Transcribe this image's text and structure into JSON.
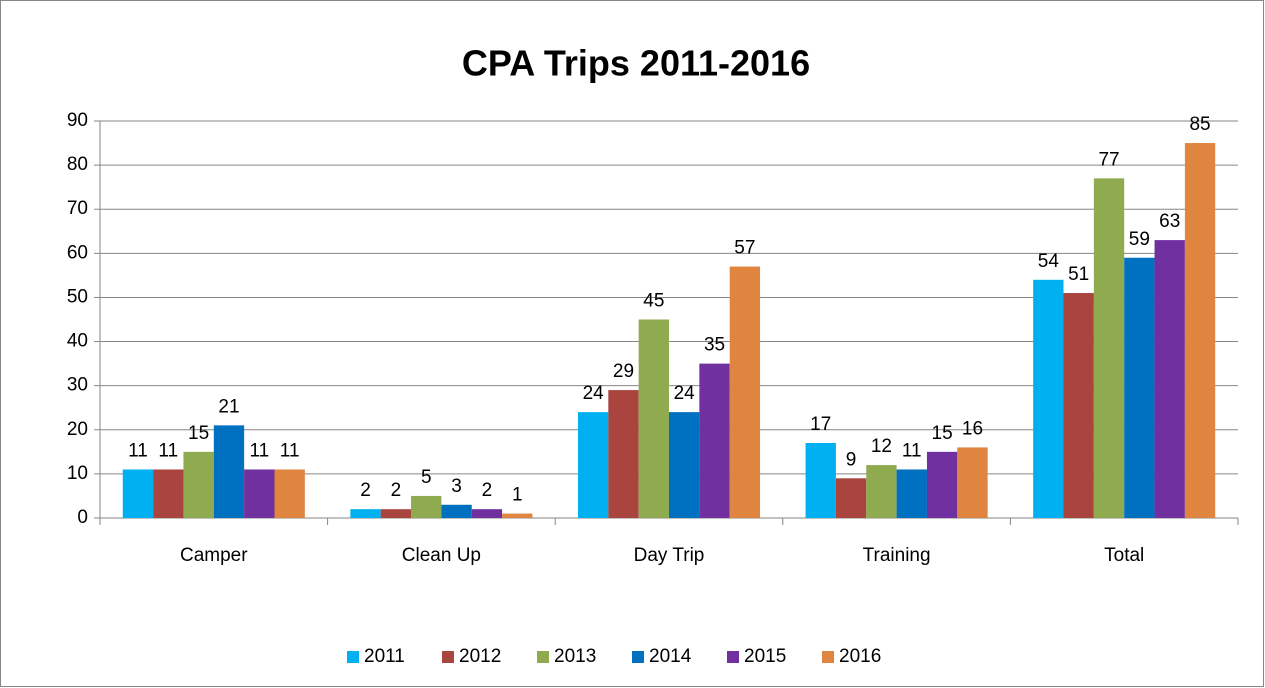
{
  "chart_data": {
    "type": "bar",
    "title": "CPA Trips 2011-2016",
    "categories": [
      "Camper",
      "Clean Up",
      "Day Trip",
      "Training",
      "Total"
    ],
    "series": [
      {
        "name": "2011",
        "color": "#00b0f0",
        "values": [
          11,
          2,
          24,
          17,
          54
        ]
      },
      {
        "name": "2012",
        "color": "#a9443f",
        "values": [
          11,
          2,
          29,
          9,
          51
        ]
      },
      {
        "name": "2013",
        "color": "#8faa4f",
        "values": [
          15,
          5,
          45,
          12,
          77
        ]
      },
      {
        "name": "2014",
        "color": "#0070c0",
        "values": [
          21,
          3,
          24,
          11,
          59
        ]
      },
      {
        "name": "2015",
        "color": "#7030a0",
        "values": [
          11,
          2,
          35,
          15,
          63
        ]
      },
      {
        "name": "2016",
        "color": "#e0853f",
        "values": [
          11,
          1,
          57,
          16,
          85
        ]
      }
    ],
    "ylim": [
      0,
      90
    ],
    "yticks": [
      0,
      10,
      20,
      30,
      40,
      50,
      60,
      70,
      80,
      90
    ],
    "grid": true,
    "legend": "bottom"
  }
}
